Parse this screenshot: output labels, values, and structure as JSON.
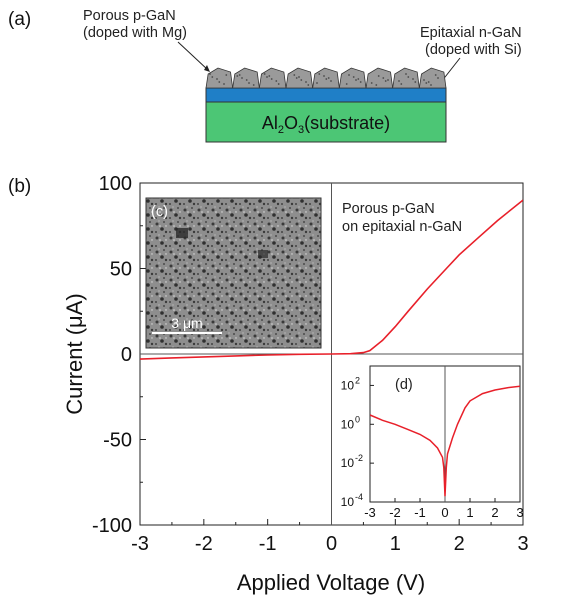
{
  "panel_a": {
    "label": "(a)",
    "porous_label_line1": "Porous p-GaN",
    "porous_label_line2": "(doped with Mg)",
    "epi_label_line1": "Epitaxial n-GaN",
    "epi_label_line2": "(doped with Si)",
    "substrate_main": "Al",
    "substrate_sub1": "2",
    "substrate_mid": "O",
    "substrate_sub2": "3",
    "substrate_rest": "(substrate)",
    "colors": {
      "substrate": "#4cc675",
      "n_gan": "#1f7fc7",
      "porous": "#9a9a9a"
    }
  },
  "panel_b": {
    "label": "(b)",
    "annotation_line1": "Porous p-GaN",
    "annotation_line2": "on epitaxial n-GaN",
    "inset_c_label": "(c)",
    "scale_bar_label": "3 μm",
    "inset_d_label": "(d)"
  },
  "chart_data": [
    {
      "type": "line",
      "title": "",
      "xlabel": "Applied Voltage (V)",
      "ylabel": "Current (μA)",
      "xlim": [
        -3,
        3
      ],
      "ylim": [
        -100,
        100
      ],
      "xticks": [
        "-3",
        "-2",
        "-1",
        "0",
        "1",
        "2",
        "3"
      ],
      "yticks": [
        "100",
        "50",
        "0",
        "-50",
        "-100"
      ],
      "series": [
        {
          "color": "#e8202a",
          "x": [
            -3,
            -2.5,
            -2,
            -1.5,
            -1,
            -0.5,
            0,
            0.3,
            0.5,
            0.6,
            0.8,
            1.0,
            1.2,
            1.5,
            1.8,
            2.0,
            2.3,
            2.6,
            3.0
          ],
          "y": [
            -3,
            -2.3,
            -1.7,
            -1.1,
            -0.6,
            -0.2,
            0,
            0.2,
            0.8,
            2,
            8,
            16,
            25,
            38,
            50,
            58,
            68,
            78,
            90
          ]
        }
      ]
    },
    {
      "type": "line",
      "title": "",
      "xlabel": "",
      "ylabel": "",
      "xlim": [
        -3,
        3
      ],
      "ylim": [
        0.0001,
        1000
      ],
      "yscale": "log",
      "xticks": [
        "-3",
        "-2",
        "-1",
        "0",
        "1",
        "2",
        "3"
      ],
      "yticks": [
        "10^2",
        "10^0",
        "10^-2",
        "10^-4"
      ],
      "series": [
        {
          "color": "#e8202a",
          "x": [
            -3,
            -2.5,
            -2,
            -1.5,
            -1,
            -0.6,
            -0.3,
            -0.1,
            -0.05,
            0,
            0.05,
            0.1,
            0.3,
            0.5,
            0.8,
            1.0,
            1.5,
            2.0,
            2.5,
            3.0
          ],
          "y": [
            3,
            1.6,
            1.0,
            0.55,
            0.3,
            0.15,
            0.06,
            0.02,
            0.006,
            0.0002,
            0.006,
            0.03,
            0.2,
            1.0,
            7,
            16,
            38,
            58,
            76,
            90
          ]
        }
      ]
    }
  ]
}
